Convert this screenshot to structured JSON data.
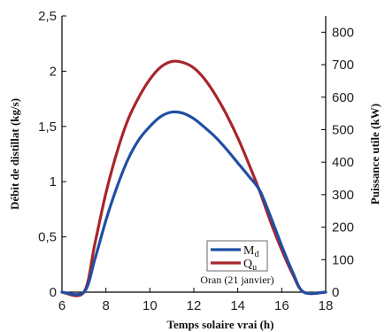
{
  "chart_data": {
    "type": "line",
    "xlabel": "Temps solaire vrai (h)",
    "ylabel": "Débit de distillat (kg/s)",
    "y2label": "Puissance utile (kW)",
    "xlim": [
      6,
      18
    ],
    "ylim": [
      0,
      2.5
    ],
    "y2lim": [
      0,
      850
    ],
    "x_ticks": [
      "6",
      "8",
      "10",
      "12",
      "14",
      "16",
      "18"
    ],
    "y_ticks": [
      "0",
      "0,5",
      "1",
      "1,5",
      "2",
      "2,5"
    ],
    "y2_ticks": [
      "0",
      "100",
      "200",
      "300",
      "400",
      "500",
      "600",
      "700",
      "800"
    ],
    "annotation": "Oran (21 janvier)",
    "grid": false,
    "legend_position": "bottom-right",
    "series": [
      {
        "name": "Md",
        "name_main": "M",
        "name_sub": "d",
        "axis": "left",
        "color": "#1f4fa3",
        "points": [
          [
            6,
            0
          ],
          [
            7,
            0
          ],
          [
            7.5,
            0.3
          ],
          [
            8,
            0.65
          ],
          [
            8.5,
            0.95
          ],
          [
            9,
            1.2
          ],
          [
            9.5,
            1.38
          ],
          [
            10,
            1.5
          ],
          [
            10.5,
            1.59
          ],
          [
            11,
            1.63
          ],
          [
            11.5,
            1.62
          ],
          [
            12,
            1.57
          ],
          [
            12.5,
            1.49
          ],
          [
            13,
            1.4
          ],
          [
            13.5,
            1.29
          ],
          [
            14,
            1.17
          ],
          [
            14.5,
            1.05
          ],
          [
            15,
            0.92
          ],
          [
            15.5,
            0.68
          ],
          [
            16,
            0.42
          ],
          [
            16.5,
            0.18
          ],
          [
            17,
            0
          ],
          [
            18,
            0
          ]
        ]
      },
      {
        "name": "Qu",
        "name_main": "Q",
        "name_sub": "u",
        "axis": "right",
        "color": "#a8252b",
        "points": [
          [
            6,
            0
          ],
          [
            7,
            0
          ],
          [
            7.5,
            150
          ],
          [
            8,
            305
          ],
          [
            8.5,
            430
          ],
          [
            9,
            530
          ],
          [
            9.5,
            600
          ],
          [
            10,
            655
          ],
          [
            10.5,
            693
          ],
          [
            11,
            710
          ],
          [
            11.5,
            707
          ],
          [
            12,
            690
          ],
          [
            12.5,
            655
          ],
          [
            13,
            605
          ],
          [
            13.5,
            545
          ],
          [
            14,
            475
          ],
          [
            14.5,
            395
          ],
          [
            15,
            310
          ],
          [
            15.5,
            215
          ],
          [
            16,
            130
          ],
          [
            16.5,
            55
          ],
          [
            17,
            0
          ],
          [
            18,
            0
          ]
        ]
      }
    ]
  }
}
